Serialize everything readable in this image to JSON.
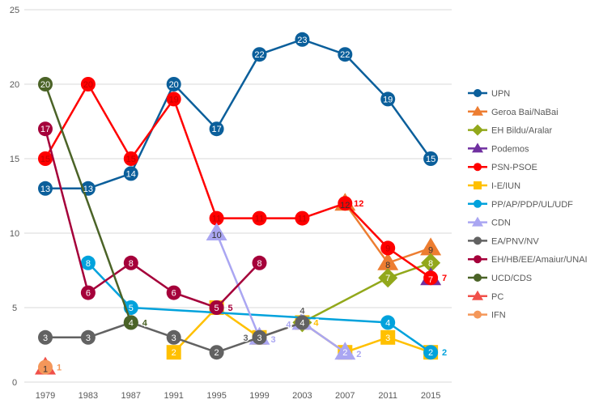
{
  "chart_data": {
    "type": "line",
    "title": "",
    "xlabel": "",
    "ylabel": "",
    "ylim": [
      0,
      25
    ],
    "yticks": [
      "0",
      "5",
      "10",
      "15",
      "20",
      "25"
    ],
    "grid": true,
    "legend_position": "right",
    "categories": [
      "1979",
      "1983",
      "1987",
      "1991",
      "1995",
      "1999",
      "2003",
      "2007",
      "2011",
      "2015"
    ],
    "series": [
      {
        "name": "UPN",
        "marker": "circle",
        "color": "#0b5f9b",
        "label_color": "#ffffff",
        "values": [
          13,
          13,
          14,
          20,
          17,
          22,
          23,
          22,
          19,
          15
        ]
      },
      {
        "name": "Geroa Bai/NaBai",
        "marker": "triangle",
        "color": "#ed7d31",
        "label_color": "#333333",
        "values": [
          null,
          null,
          null,
          null,
          null,
          null,
          null,
          12,
          8,
          9
        ]
      },
      {
        "name": "EH Bildu/Aralar",
        "marker": "diamond",
        "color": "#92a81b",
        "label_color": "#ffffff",
        "values": [
          null,
          null,
          null,
          null,
          null,
          null,
          4,
          null,
          7,
          8
        ]
      },
      {
        "name": "Podemos",
        "marker": "triangle",
        "color": "#7030a0",
        "label_color": "#ffffff",
        "values": [
          null,
          null,
          null,
          null,
          null,
          null,
          null,
          null,
          null,
          7
        ]
      },
      {
        "name": "PSN-PSOE",
        "marker": "circle",
        "color": "#ff0000",
        "label_color": "#c00000",
        "values": [
          15,
          20,
          15,
          19,
          11,
          11,
          11,
          12,
          9,
          7
        ]
      },
      {
        "name": "I-E/IUN",
        "marker": "square",
        "color": "#ffc000",
        "label_color": "#ffffff",
        "values": [
          null,
          null,
          null,
          2,
          5,
          3,
          4,
          2,
          3,
          2
        ]
      },
      {
        "name": "PP/AP/PDP/UL/UDF",
        "marker": "circle",
        "color": "#00a2dc",
        "label_color": "#ffffff",
        "values": [
          null,
          8,
          5,
          null,
          null,
          null,
          null,
          null,
          4,
          2
        ]
      },
      {
        "name": "CDN",
        "marker": "triangle",
        "color": "#aaa6f2",
        "label_color": "#333333",
        "values": [
          null,
          null,
          null,
          null,
          10,
          3,
          4,
          2,
          null,
          null
        ]
      },
      {
        "name": "EA/PNV/NV",
        "marker": "circle",
        "color": "#626262",
        "label_color": "#ffffff",
        "values": [
          3,
          3,
          4,
          3,
          2,
          3,
          4,
          null,
          null,
          null
        ]
      },
      {
        "name": "EH/HB/EE/Amaiur/UNAI",
        "marker": "circle",
        "color": "#a5003a",
        "label_color": "#ffffff",
        "values": [
          17,
          6,
          8,
          6,
          5,
          8,
          null,
          null,
          null,
          null
        ]
      },
      {
        "name": "UCD/CDS",
        "marker": "circle",
        "color": "#4b6327",
        "label_color": "#ffffff",
        "values": [
          20,
          null,
          4,
          null,
          null,
          null,
          null,
          null,
          null,
          null
        ]
      },
      {
        "name": "PC",
        "marker": "triangle",
        "color": "#f0504a",
        "label_color": "#333333",
        "values": [
          1,
          null,
          null,
          null,
          null,
          null,
          null,
          null,
          null,
          null
        ]
      },
      {
        "name": "IFN",
        "marker": "circle",
        "color": "#f4975a",
        "label_color": "#333333",
        "values": [
          1,
          null,
          null,
          null,
          null,
          null,
          null,
          null,
          null,
          null
        ]
      }
    ]
  }
}
